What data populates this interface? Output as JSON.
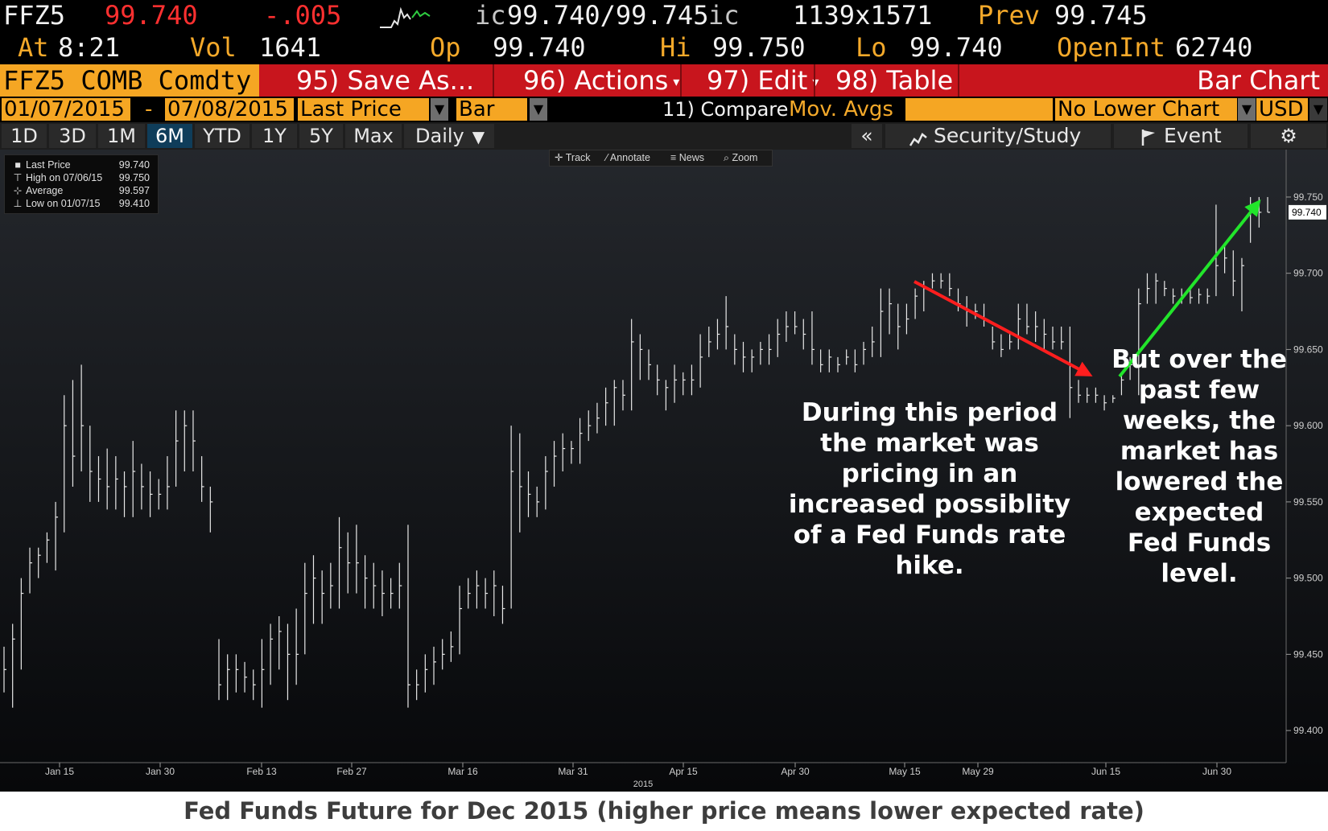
{
  "quote": {
    "ticker": "FFZ5",
    "last": "99.740",
    "change": "-.005",
    "bid_ask_prefix": "ic",
    "bid_ask": "99.740/99.745",
    "bid_ask_suffix": "ic",
    "size": "1139x1571",
    "prev_label": "Prev",
    "prev": "99.745",
    "at_label": "At",
    "time": "8:21",
    "vol_label": "Vol",
    "vol": "1641",
    "op_label": "Op",
    "op": "99.740",
    "hi_label": "Hi",
    "hi": "99.750",
    "lo_label": "Lo",
    "lo": "99.740",
    "oi_label": "OpenInt",
    "oi": "62740"
  },
  "titlebar": {
    "security": "FFZ5 COMB Comdty",
    "save": "95) Save As...",
    "actions": "96) Actions",
    "edit": "97) Edit",
    "table": "98) Table",
    "title": "Bar Chart"
  },
  "range": {
    "start": "01/07/2015",
    "dash": "-",
    "end": "07/08/2015",
    "field": "Last Price",
    "style": "Bar",
    "compare": "11) Compare",
    "movavg": "Mov. Avgs",
    "lower": "No Lower Chart",
    "currency": "USD"
  },
  "periods": [
    "1D",
    "3D",
    "1M",
    "6M",
    "YTD",
    "1Y",
    "5Y",
    "Max"
  ],
  "active_period": "6M",
  "frequency": "Daily",
  "right_buttons": {
    "collapse": "«",
    "security_study": "Security/Study",
    "event": "Event"
  },
  "tools": [
    "Track",
    "Annotate",
    "News",
    "Zoom"
  ],
  "legend": [
    {
      "label": "Last Price",
      "value": "99.740"
    },
    {
      "label": "High on 07/06/15",
      "value": "99.750"
    },
    {
      "label": "Average",
      "value": "99.597"
    },
    {
      "label": "Low on 01/07/15",
      "value": "99.410"
    }
  ],
  "annotations": {
    "left": "During this period the market was pricing in an increased possiblity of a Fed Funds rate hike.",
    "right": "But over the past few weeks, the market has lowered the expected Fed Funds level."
  },
  "caption": "Fed Funds Future for Dec 2015 (higher price means lower expected rate)",
  "colors": {
    "orange": "#f5a623",
    "red_bar": "#c8151d",
    "down_arrow": "#ff1e1e",
    "up_arrow": "#22e52b"
  },
  "chart_data": {
    "type": "bar",
    "subtype": "ohlc",
    "ylim": [
      99.38,
      99.76
    ],
    "y_ticks": [
      "99.400",
      "99.450",
      "99.500",
      "99.550",
      "99.600",
      "99.650",
      "99.700",
      "99.750"
    ],
    "last_price_label": "99.740",
    "x_tick_labels": [
      "Jan 15",
      "Jan 30",
      "Feb 13",
      "Feb 27",
      "Mar 16",
      "Mar 31",
      "Apr 15",
      "Apr 30",
      "May 15",
      "May 29",
      "Jun 15",
      "Jun 30"
    ],
    "x_year_label": "2015",
    "bars": [
      {
        "hi": 99.455,
        "lo": 99.425,
        "c": 99.44
      },
      {
        "hi": 99.47,
        "lo": 99.415,
        "c": 99.46
      },
      {
        "hi": 99.5,
        "lo": 99.44,
        "c": 99.49
      },
      {
        "hi": 99.52,
        "lo": 99.49,
        "c": 99.51
      },
      {
        "hi": 99.52,
        "lo": 99.5,
        "c": 99.515
      },
      {
        "hi": 99.53,
        "lo": 99.51,
        "c": 99.525
      },
      {
        "hi": 99.55,
        "lo": 99.505,
        "c": 99.54
      },
      {
        "hi": 99.62,
        "lo": 99.53,
        "c": 99.6
      },
      {
        "hi": 99.63,
        "lo": 99.56,
        "c": 99.58
      },
      {
        "hi": 99.64,
        "lo": 99.57,
        "c": 99.6
      },
      {
        "hi": 99.6,
        "lo": 99.55,
        "c": 99.57
      },
      {
        "hi": 99.58,
        "lo": 99.55,
        "c": 99.565
      },
      {
        "hi": 99.585,
        "lo": 99.545,
        "c": 99.56
      },
      {
        "hi": 99.58,
        "lo": 99.545,
        "c": 99.565
      },
      {
        "hi": 99.57,
        "lo": 99.54,
        "c": 99.56
      },
      {
        "hi": 99.59,
        "lo": 99.54,
        "c": 99.57
      },
      {
        "hi": 99.575,
        "lo": 99.545,
        "c": 99.56
      },
      {
        "hi": 99.57,
        "lo": 99.54,
        "c": 99.555
      },
      {
        "hi": 99.565,
        "lo": 99.545,
        "c": 99.555
      },
      {
        "hi": 99.58,
        "lo": 99.545,
        "c": 99.56
      },
      {
        "hi": 99.61,
        "lo": 99.56,
        "c": 99.59
      },
      {
        "hi": 99.61,
        "lo": 99.57,
        "c": 99.6
      },
      {
        "hi": 99.61,
        "lo": 99.57,
        "c": 99.59
      },
      {
        "hi": 99.58,
        "lo": 99.55,
        "c": 99.56
      },
      {
        "hi": 99.56,
        "lo": 99.53,
        "c": 99.55
      },
      {
        "hi": 99.46,
        "lo": 99.42,
        "c": 99.43
      },
      {
        "hi": 99.45,
        "lo": 99.42,
        "c": 99.44
      },
      {
        "hi": 99.45,
        "lo": 99.425,
        "c": 99.44
      },
      {
        "hi": 99.445,
        "lo": 99.425,
        "c": 99.435
      },
      {
        "hi": 99.44,
        "lo": 99.42,
        "c": 99.43
      },
      {
        "hi": 99.46,
        "lo": 99.415,
        "c": 99.44
      },
      {
        "hi": 99.47,
        "lo": 99.43,
        "c": 99.46
      },
      {
        "hi": 99.475,
        "lo": 99.44,
        "c": 99.465
      },
      {
        "hi": 99.47,
        "lo": 99.42,
        "c": 99.45
      },
      {
        "hi": 99.48,
        "lo": 99.43,
        "c": 99.45
      },
      {
        "hi": 99.51,
        "lo": 99.45,
        "c": 99.49
      },
      {
        "hi": 99.515,
        "lo": 99.47,
        "c": 99.5
      },
      {
        "hi": 99.505,
        "lo": 99.47,
        "c": 99.49
      },
      {
        "hi": 99.51,
        "lo": 99.48,
        "c": 99.495
      },
      {
        "hi": 99.54,
        "lo": 99.48,
        "c": 99.52
      },
      {
        "hi": 99.53,
        "lo": 99.49,
        "c": 99.51
      },
      {
        "hi": 99.535,
        "lo": 99.49,
        "c": 99.51
      },
      {
        "hi": 99.515,
        "lo": 99.48,
        "c": 99.5
      },
      {
        "hi": 99.51,
        "lo": 99.48,
        "c": 99.495
      },
      {
        "hi": 99.505,
        "lo": 99.475,
        "c": 99.49
      },
      {
        "hi": 99.5,
        "lo": 99.48,
        "c": 99.49
      },
      {
        "hi": 99.51,
        "lo": 99.48,
        "c": 99.495
      },
      {
        "hi": 99.535,
        "lo": 99.415,
        "c": 99.43
      },
      {
        "hi": 99.44,
        "lo": 99.42,
        "c": 99.43
      },
      {
        "hi": 99.45,
        "lo": 99.425,
        "c": 99.44
      },
      {
        "hi": 99.455,
        "lo": 99.43,
        "c": 99.445
      },
      {
        "hi": 99.46,
        "lo": 99.44,
        "c": 99.45
      },
      {
        "hi": 99.465,
        "lo": 99.445,
        "c": 99.455
      },
      {
        "hi": 99.495,
        "lo": 99.45,
        "c": 99.48
      },
      {
        "hi": 99.5,
        "lo": 99.48,
        "c": 99.49
      },
      {
        "hi": 99.505,
        "lo": 99.48,
        "c": 99.495
      },
      {
        "hi": 99.5,
        "lo": 99.48,
        "c": 99.49
      },
      {
        "hi": 99.505,
        "lo": 99.475,
        "c": 99.495
      },
      {
        "hi": 99.495,
        "lo": 99.47,
        "c": 99.48
      },
      {
        "hi": 99.6,
        "lo": 99.48,
        "c": 99.57
      },
      {
        "hi": 99.595,
        "lo": 99.53,
        "c": 99.56
      },
      {
        "hi": 99.57,
        "lo": 99.54,
        "c": 99.555
      },
      {
        "hi": 99.56,
        "lo": 99.54,
        "c": 99.55
      },
      {
        "hi": 99.58,
        "lo": 99.545,
        "c": 99.57
      },
      {
        "hi": 99.59,
        "lo": 99.56,
        "c": 99.58
      },
      {
        "hi": 99.595,
        "lo": 99.57,
        "c": 99.585
      },
      {
        "hi": 99.59,
        "lo": 99.575,
        "c": 99.585
      },
      {
        "hi": 99.605,
        "lo": 99.575,
        "c": 99.595
      },
      {
        "hi": 99.61,
        "lo": 99.59,
        "c": 99.6
      },
      {
        "hi": 99.615,
        "lo": 99.595,
        "c": 99.605
      },
      {
        "hi": 99.625,
        "lo": 99.6,
        "c": 99.615
      },
      {
        "hi": 99.63,
        "lo": 99.6,
        "c": 99.625
      },
      {
        "hi": 99.63,
        "lo": 99.61,
        "c": 99.62
      },
      {
        "hi": 99.67,
        "lo": 99.61,
        "c": 99.655
      },
      {
        "hi": 99.66,
        "lo": 99.63,
        "c": 99.65
      },
      {
        "hi": 99.65,
        "lo": 99.63,
        "c": 99.64
      },
      {
        "hi": 99.64,
        "lo": 99.62,
        "c": 99.63
      },
      {
        "hi": 99.63,
        "lo": 99.61,
        "c": 99.625
      },
      {
        "hi": 99.64,
        "lo": 99.615,
        "c": 99.63
      },
      {
        "hi": 99.635,
        "lo": 99.62,
        "c": 99.63
      },
      {
        "hi": 99.64,
        "lo": 99.62,
        "c": 99.63
      },
      {
        "hi": 99.66,
        "lo": 99.625,
        "c": 99.645
      },
      {
        "hi": 99.665,
        "lo": 99.645,
        "c": 99.655
      },
      {
        "hi": 99.67,
        "lo": 99.65,
        "c": 99.66
      },
      {
        "hi": 99.685,
        "lo": 99.65,
        "c": 99.665
      },
      {
        "hi": 99.66,
        "lo": 99.64,
        "c": 99.65
      },
      {
        "hi": 99.655,
        "lo": 99.635,
        "c": 99.645
      },
      {
        "hi": 99.65,
        "lo": 99.635,
        "c": 99.645
      },
      {
        "hi": 99.655,
        "lo": 99.64,
        "c": 99.65
      },
      {
        "hi": 99.66,
        "lo": 99.64,
        "c": 99.65
      },
      {
        "hi": 99.67,
        "lo": 99.645,
        "c": 99.66
      },
      {
        "hi": 99.675,
        "lo": 99.655,
        "c": 99.665
      },
      {
        "hi": 99.675,
        "lo": 99.66,
        "c": 99.665
      },
      {
        "hi": 99.67,
        "lo": 99.65,
        "c": 99.66
      },
      {
        "hi": 99.675,
        "lo": 99.64,
        "c": 99.65
      },
      {
        "hi": 99.65,
        "lo": 99.635,
        "c": 99.64
      },
      {
        "hi": 99.65,
        "lo": 99.635,
        "c": 99.645
      },
      {
        "hi": 99.645,
        "lo": 99.635,
        "c": 99.64
      },
      {
        "hi": 99.65,
        "lo": 99.64,
        "c": 99.645
      },
      {
        "hi": 99.65,
        "lo": 99.635,
        "c": 99.64
      },
      {
        "hi": 99.655,
        "lo": 99.64,
        "c": 99.65
      },
      {
        "hi": 99.665,
        "lo": 99.645,
        "c": 99.655
      },
      {
        "hi": 99.69,
        "lo": 99.645,
        "c": 99.675
      },
      {
        "hi": 99.69,
        "lo": 99.66,
        "c": 99.68
      },
      {
        "hi": 99.68,
        "lo": 99.65,
        "c": 99.665
      },
      {
        "hi": 99.68,
        "lo": 99.66,
        "c": 99.67
      },
      {
        "hi": 99.69,
        "lo": 99.67,
        "c": 99.685
      },
      {
        "hi": 99.695,
        "lo": 99.675,
        "c": 99.69
      },
      {
        "hi": 99.7,
        "lo": 99.69,
        "c": 99.695
      },
      {
        "hi": 99.7,
        "lo": 99.69,
        "c": 99.695
      },
      {
        "hi": 99.7,
        "lo": 99.685,
        "c": 99.69
      },
      {
        "hi": 99.69,
        "lo": 99.675,
        "c": 99.68
      },
      {
        "hi": 99.685,
        "lo": 99.665,
        "c": 99.675
      },
      {
        "hi": 99.68,
        "lo": 99.67,
        "c": 99.675
      },
      {
        "hi": 99.68,
        "lo": 99.665,
        "c": 99.67
      },
      {
        "hi": 99.665,
        "lo": 99.65,
        "c": 99.655
      },
      {
        "hi": 99.66,
        "lo": 99.645,
        "c": 99.65
      },
      {
        "hi": 99.66,
        "lo": 99.65,
        "c": 99.655
      },
      {
        "hi": 99.68,
        "lo": 99.65,
        "c": 99.67
      },
      {
        "hi": 99.68,
        "lo": 99.66,
        "c": 99.665
      },
      {
        "hi": 99.675,
        "lo": 99.655,
        "c": 99.665
      },
      {
        "hi": 99.67,
        "lo": 99.65,
        "c": 99.66
      },
      {
        "hi": 99.665,
        "lo": 99.65,
        "c": 99.655
      },
      {
        "hi": 99.665,
        "lo": 99.65,
        "c": 99.655
      },
      {
        "hi": 99.665,
        "lo": 99.605,
        "c": 99.625
      },
      {
        "hi": 99.63,
        "lo": 99.615,
        "c": 99.62
      },
      {
        "hi": 99.625,
        "lo": 99.615,
        "c": 99.62
      },
      {
        "hi": 99.625,
        "lo": 99.615,
        "c": 99.62
      },
      {
        "hi": 99.62,
        "lo": 99.61,
        "c": 99.615
      },
      {
        "hi": 99.62,
        "lo": 99.615,
        "c": 99.618
      },
      {
        "hi": 99.635,
        "lo": 99.62,
        "c": 99.63
      },
      {
        "hi": 99.645,
        "lo": 99.63,
        "c": 99.64
      },
      {
        "hi": 99.69,
        "lo": 99.62,
        "c": 99.68
      },
      {
        "hi": 99.7,
        "lo": 99.68,
        "c": 99.69
      },
      {
        "hi": 99.7,
        "lo": 99.68,
        "c": 99.695
      },
      {
        "hi": 99.695,
        "lo": 99.685,
        "c": 99.69
      },
      {
        "hi": 99.69,
        "lo": 99.68,
        "c": 99.685
      },
      {
        "hi": 99.69,
        "lo": 99.68,
        "c": 99.685
      },
      {
        "hi": 99.69,
        "lo": 99.68,
        "c": 99.684
      },
      {
        "hi": 99.69,
        "lo": 99.68,
        "c": 99.686
      },
      {
        "hi": 99.69,
        "lo": 99.68,
        "c": 99.685
      },
      {
        "hi": 99.745,
        "lo": 99.685,
        "c": 99.705
      },
      {
        "hi": 99.72,
        "lo": 99.7,
        "c": 99.71
      },
      {
        "hi": 99.715,
        "lo": 99.685,
        "c": 99.695
      },
      {
        "hi": 99.71,
        "lo": 99.675,
        "c": 99.705
      },
      {
        "hi": 99.75,
        "lo": 99.72,
        "c": 99.74
      },
      {
        "hi": 99.75,
        "lo": 99.73,
        "c": 99.74
      },
      {
        "hi": 99.75,
        "lo": 99.74,
        "c": 99.74
      }
    ]
  }
}
